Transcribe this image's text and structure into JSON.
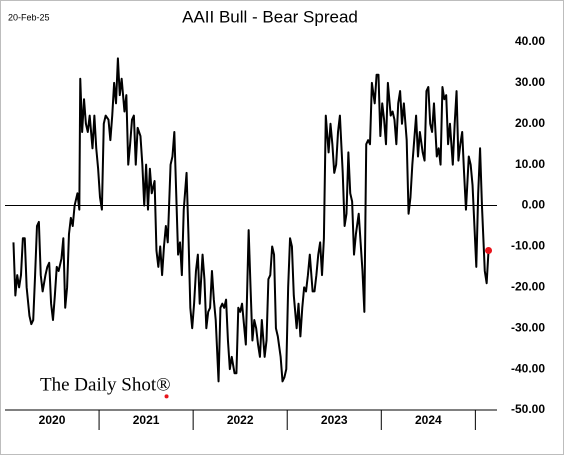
{
  "chart_data": {
    "type": "line",
    "title": "AAII Bull - Bear Spread",
    "date_note": "20-Feb-25",
    "watermark": "The Daily Shot®",
    "color": "#000000",
    "last_point_color": "#e8141b",
    "zero_line": true,
    "xlim": [
      2020,
      2025.23
    ],
    "xticks": [
      {
        "value": 2020.5,
        "label": "2020"
      },
      {
        "value": 2021.5,
        "label": "2021"
      },
      {
        "value": 2022.5,
        "label": "2022"
      },
      {
        "value": 2023.5,
        "label": "2023"
      },
      {
        "value": 2024.5,
        "label": "2024"
      }
    ],
    "x_separators": [
      2021,
      2022,
      2023,
      2024,
      2025
    ],
    "ylim": [
      -50,
      40
    ],
    "yticks": [
      {
        "value": -50,
        "label": "-50.00"
      },
      {
        "value": -40,
        "label": "-40.00"
      },
      {
        "value": -30,
        "label": "-30.00"
      },
      {
        "value": -20,
        "label": "-20.00"
      },
      {
        "value": -10,
        "label": "-10.00"
      },
      {
        "value": 0,
        "label": "0.00"
      },
      {
        "value": 10,
        "label": "10.00"
      },
      {
        "value": 20,
        "label": "20.00"
      },
      {
        "value": 30,
        "label": "30.00"
      },
      {
        "value": 40,
        "label": "40.00"
      }
    ],
    "x": [
      2020.09,
      2020.11,
      2020.13,
      2020.15,
      2020.17,
      2020.19,
      2020.21,
      2020.23,
      2020.26,
      2020.28,
      2020.3,
      2020.32,
      2020.34,
      2020.36,
      2020.38,
      2020.4,
      2020.43,
      2020.45,
      2020.47,
      2020.49,
      2020.51,
      2020.53,
      2020.55,
      2020.57,
      2020.6,
      2020.62,
      2020.64,
      2020.66,
      2020.68,
      2020.7,
      2020.72,
      2020.74,
      2020.77,
      2020.79,
      2020.8,
      2020.82,
      2020.84,
      2020.86,
      2020.88,
      2020.9,
      2020.93,
      2020.95,
      2020.97,
      2020.99,
      2021.01,
      2021.03,
      2021.05,
      2021.07,
      2021.1,
      2021.12,
      2021.14,
      2021.16,
      2021.18,
      2021.2,
      2021.22,
      2021.24,
      2021.27,
      2021.29,
      2021.31,
      2021.33,
      2021.35,
      2021.37,
      2021.39,
      2021.41,
      2021.44,
      2021.46,
      2021.48,
      2021.5,
      2021.52,
      2021.54,
      2021.56,
      2021.59,
      2021.61,
      2021.63,
      2021.65,
      2021.67,
      2021.69,
      2021.71,
      2021.73,
      2021.76,
      2021.78,
      2021.8,
      2021.82,
      2021.84,
      2021.86,
      2021.88,
      2021.9,
      2021.93,
      2021.95,
      2021.97,
      2021.99,
      2022.01,
      2022.03,
      2022.05,
      2022.07,
      2022.1,
      2022.12,
      2022.14,
      2022.16,
      2022.18,
      2022.2,
      2022.22,
      2022.24,
      2022.27,
      2022.29,
      2022.31,
      2022.33,
      2022.35,
      2022.37,
      2022.39,
      2022.41,
      2022.44,
      2022.46,
      2022.48,
      2022.5,
      2022.52,
      2022.54,
      2022.56,
      2022.59,
      2022.61,
      2022.63,
      2022.65,
      2022.67,
      2022.69,
      2022.71,
      2022.73,
      2022.76,
      2022.78,
      2022.8,
      2022.82,
      2022.84,
      2022.86,
      2022.88,
      2022.9,
      2022.93,
      2022.95,
      2022.97,
      2022.99,
      2023.01,
      2023.03,
      2023.05,
      2023.07,
      2023.1,
      2023.12,
      2023.14,
      2023.16,
      2023.18,
      2023.2,
      2023.22,
      2023.24,
      2023.27,
      2023.29,
      2023.31,
      2023.33,
      2023.35,
      2023.37,
      2023.39,
      2023.41,
      2023.44,
      2023.46,
      2023.48,
      2023.5,
      2023.52,
      2023.54,
      2023.56,
      2023.59,
      2023.61,
      2023.63,
      2023.65,
      2023.67,
      2023.69,
      2023.71,
      2023.73,
      2023.76,
      2023.78,
      2023.8,
      2023.82,
      2023.84,
      2023.86,
      2023.88,
      2023.9,
      2023.93,
      2023.95,
      2023.97,
      2023.99,
      2024.01,
      2024.03,
      2024.05,
      2024.07,
      2024.1,
      2024.12,
      2024.14,
      2024.16,
      2024.18,
      2024.2,
      2024.22,
      2024.24,
      2024.27,
      2024.29,
      2024.31,
      2024.33,
      2024.35,
      2024.37,
      2024.39,
      2024.41,
      2024.44,
      2024.46,
      2024.48,
      2024.5,
      2024.52,
      2024.54,
      2024.56,
      2024.59,
      2024.61,
      2024.63,
      2024.65,
      2024.67,
      2024.69,
      2024.71,
      2024.73,
      2024.76,
      2024.78,
      2024.8,
      2024.82,
      2024.84,
      2024.86,
      2024.88,
      2024.9,
      2024.93,
      2024.95,
      2024.97,
      2024.99,
      2025.01,
      2025.03,
      2025.05,
      2025.07,
      2025.1,
      2025.12,
      2025.14
    ],
    "values": [
      -9,
      -22,
      -17,
      -20,
      -17,
      -8,
      -8,
      -20,
      -27,
      -29,
      -28,
      -17,
      -5,
      -4,
      -17,
      -21,
      -17,
      -15,
      -14,
      -24,
      -28,
      -22,
      -15,
      -16,
      -13,
      -8,
      -25,
      -20,
      -7,
      -3,
      -5,
      0,
      3,
      -1,
      31,
      18,
      26,
      20,
      18,
      22,
      14,
      22,
      14,
      9,
      2,
      -1,
      20,
      22,
      21,
      16,
      22,
      30,
      25,
      36,
      27,
      31,
      23,
      27,
      10,
      15,
      21,
      22,
      10,
      19,
      17,
      10,
      0,
      10,
      -1,
      9,
      3,
      6,
      -11,
      -15,
      -10,
      -17,
      -10,
      -5,
      -9,
      10,
      12,
      18,
      3,
      -12,
      -9,
      -17,
      -1,
      8,
      -7,
      -25,
      -30,
      -24,
      -16,
      -12,
      -24,
      -12,
      -18,
      -30,
      -26,
      -25,
      -16,
      -23,
      -28,
      -43,
      -25,
      -24,
      -25,
      -23,
      -33,
      -40,
      -37,
      -41,
      -41,
      -25,
      -26,
      -24,
      -29,
      -34,
      -6,
      -20,
      -33,
      -28,
      -30,
      -34,
      -37,
      -28,
      -37,
      -33,
      -18,
      -17,
      -10,
      -12,
      -30,
      -32,
      -37,
      -43,
      -42,
      -40,
      -20,
      -8,
      -10,
      -22,
      -30,
      -24,
      -32,
      -25,
      -20,
      -21,
      -17,
      -12,
      -21,
      -21,
      -17,
      -12,
      -9,
      -17,
      -8,
      22,
      13,
      20,
      15,
      8,
      10,
      18,
      22,
      8,
      -5,
      -2,
      13,
      3,
      1,
      -12,
      -7,
      -2,
      -9,
      -16,
      -26,
      15,
      16,
      15,
      30,
      25,
      32,
      32,
      17,
      25,
      21,
      15,
      30,
      22,
      23,
      21,
      15,
      25,
      28,
      20,
      25,
      16,
      -2,
      2,
      10,
      16,
      22,
      12,
      18,
      13,
      11,
      28,
      29,
      20,
      18,
      25,
      12,
      14,
      10,
      29,
      26,
      27,
      15,
      20,
      10,
      20,
      28,
      11,
      15,
      18,
      8,
      -1,
      12,
      10,
      5,
      -5,
      -15,
      3,
      14,
      0,
      -16,
      -19,
      -11
    ]
  }
}
